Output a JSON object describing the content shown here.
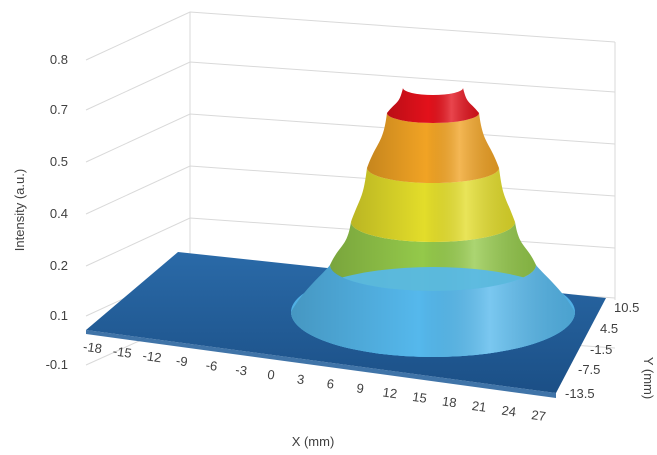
{
  "chart_data": {
    "type": "surface-3d",
    "title": "",
    "xlabel": "X (mm)",
    "ylabel": "Y (mm)",
    "zlabel": "Intensity (a.u.)",
    "x_ticks": [
      "-18",
      "-15",
      "-12",
      "-9",
      "-6",
      "-3",
      "0",
      "3",
      "6",
      "9",
      "12",
      "15",
      "18",
      "21",
      "24",
      "27"
    ],
    "y_ticks": [
      "10.5",
      "4.5",
      "-1.5",
      "-7.5",
      "-13.5"
    ],
    "z_ticks": [
      "0.8",
      "0.7",
      "0.5",
      "0.4",
      "0.2",
      "0.1",
      "-0.1"
    ],
    "surface": {
      "shape": "gaussian",
      "peak_intensity": 0.8,
      "peak_x": 15,
      "peak_y": 0,
      "baseline": 0.05
    },
    "color_bands": [
      {
        "from": -0.1,
        "to": 0.1,
        "color": "#1f5c99"
      },
      {
        "from": 0.1,
        "to": 0.3,
        "color": "#55b8ec"
      },
      {
        "from": 0.3,
        "to": 0.45,
        "color": "#94c94a"
      },
      {
        "from": 0.45,
        "to": 0.6,
        "color": "#e3dd2a"
      },
      {
        "from": 0.6,
        "to": 0.72,
        "color": "#f1a324"
      },
      {
        "from": 0.72,
        "to": 0.85,
        "color": "#e3111b"
      }
    ],
    "grid": true,
    "legend": "none"
  }
}
